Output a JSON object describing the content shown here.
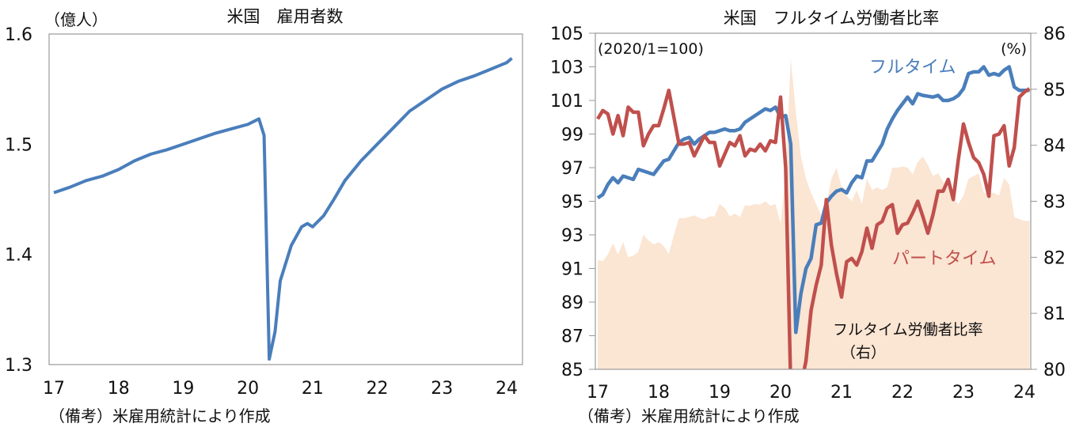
{
  "chart_data": [
    {
      "type": "line",
      "title": "米国　雇用者数",
      "ylabel": "（億人）",
      "note": "（備考）米雇用統計により作成",
      "ylim": [
        1.3,
        1.6
      ],
      "yticks": [
        "1.6",
        "1.5",
        "1.4",
        "1.3"
      ],
      "ytick_values": [
        1.6,
        1.5,
        1.4,
        1.3
      ],
      "xticks": [
        "17",
        "18",
        "19",
        "20",
        "21",
        "22",
        "23",
        "24"
      ],
      "xlim": [
        17,
        24
      ],
      "color": "#4a7ebb",
      "series": [
        {
          "name": "雇用者数",
          "x": [
            17.0,
            17.25,
            17.5,
            17.75,
            18.0,
            18.25,
            18.5,
            18.75,
            19.0,
            19.25,
            19.5,
            19.75,
            20.0,
            20.17,
            20.25,
            20.33,
            20.42,
            20.5,
            20.67,
            20.83,
            20.92,
            21.0,
            21.17,
            21.33,
            21.5,
            21.75,
            22.0,
            22.25,
            22.5,
            22.75,
            23.0,
            23.25,
            23.5,
            23.75,
            24.0,
            24.08
          ],
          "y": [
            1.456,
            1.461,
            1.467,
            1.471,
            1.477,
            1.485,
            1.491,
            1.495,
            1.5,
            1.505,
            1.51,
            1.514,
            1.518,
            1.523,
            1.508,
            1.305,
            1.33,
            1.376,
            1.408,
            1.425,
            1.428,
            1.425,
            1.435,
            1.45,
            1.467,
            1.485,
            1.5,
            1.515,
            1.53,
            1.54,
            1.55,
            1.557,
            1.562,
            1.568,
            1.574,
            1.578
          ]
        }
      ]
    },
    {
      "type": "line",
      "title": "米国　フルタイム労働者比率",
      "left_unit": "(2020/1=100)",
      "right_unit": "(%)",
      "note": "（備考）米雇用統計により作成",
      "start_month": "2017-01",
      "ylim_left": [
        85,
        105
      ],
      "ylim_right": [
        80,
        86
      ],
      "yticks_left": [
        "105",
        "103",
        "101",
        "99",
        "97",
        "95",
        "93",
        "91",
        "89",
        "87",
        "85"
      ],
      "yticks_right": [
        "86",
        "85",
        "84",
        "83",
        "82",
        "81",
        "80"
      ],
      "xticks": [
        "17",
        "18",
        "19",
        "20",
        "21",
        "22",
        "23",
        "24"
      ],
      "series": [
        {
          "name": "フルタイム",
          "axis": "left",
          "color": "#4a7ebb",
          "values": [
            95.2,
            95.4,
            96.0,
            96.4,
            96.1,
            96.5,
            96.4,
            96.3,
            96.9,
            96.8,
            96.7,
            96.6,
            97.0,
            97.4,
            97.5,
            98.0,
            98.5,
            98.7,
            98.8,
            98.4,
            98.7,
            98.9,
            99.1,
            99.1,
            99.2,
            99.3,
            99.2,
            99.2,
            99.3,
            99.7,
            99.9,
            100.1,
            100.3,
            100.5,
            100.4,
            100.6,
            100.0,
            100.1,
            98.4,
            87.2,
            89.5,
            91.0,
            91.6,
            93.6,
            93.7,
            94.9,
            95.3,
            95.6,
            95.7,
            95.5,
            96.1,
            96.5,
            96.4,
            97.4,
            97.4,
            97.9,
            98.4,
            99.3,
            99.9,
            100.4,
            100.8,
            101.2,
            100.8,
            101.4,
            101.3,
            101.25,
            101.2,
            101.3,
            101.0,
            101.0,
            101.1,
            101.3,
            101.7,
            102.6,
            102.7,
            102.7,
            103.0,
            102.5,
            102.6,
            102.5,
            102.8,
            103.0,
            101.8,
            101.6,
            101.6,
            101.6
          ]
        },
        {
          "name": "パートタイム",
          "axis": "left",
          "color": "#c0504d",
          "values": [
            99.9,
            100.4,
            100.2,
            99.0,
            100.1,
            98.9,
            100.6,
            100.3,
            100.3,
            98.3,
            99.0,
            99.5,
            99.5,
            100.5,
            101.6,
            100.0,
            98.4,
            98.4,
            98.5,
            97.7,
            98.3,
            98.9,
            98.5,
            98.5,
            97.1,
            97.8,
            98.5,
            98.3,
            98.9,
            97.7,
            98.1,
            98.0,
            98.4,
            98.0,
            98.6,
            98.5,
            101.2,
            97.0,
            84.0,
            80.0,
            80.0,
            85.5,
            88.5,
            90.0,
            91.2,
            95.1,
            92.4,
            90.7,
            89.3,
            91.4,
            91.6,
            91.2,
            92.0,
            93.4,
            92.2,
            93.6,
            93.8,
            94.6,
            94.8,
            93.1,
            93.6,
            93.7,
            94.3,
            95.0,
            94.1,
            93.1,
            94.2,
            95.6,
            95.6,
            96.3,
            95.1,
            97.5,
            99.6,
            98.5,
            97.6,
            97.3,
            96.6,
            95.3,
            98.9,
            99.0,
            99.5,
            97.1,
            98.2,
            101.2,
            101.5,
            101.7
          ]
        },
        {
          "name": "フルタイム労働者比率",
          "label_suffix": "（右）",
          "axis": "right",
          "type": "area",
          "color": "#fbe5d3",
          "values": [
            81.95,
            81.93,
            82.05,
            82.25,
            82.05,
            82.27,
            82.0,
            82.03,
            82.1,
            82.4,
            82.3,
            82.23,
            82.27,
            82.2,
            82.06,
            82.4,
            82.7,
            82.7,
            82.72,
            82.75,
            82.7,
            82.68,
            82.73,
            82.73,
            82.95,
            82.88,
            82.73,
            82.78,
            82.72,
            82.93,
            82.92,
            82.95,
            82.94,
            83.0,
            82.92,
            82.95,
            82.6,
            83.5,
            85.55,
            84.6,
            83.8,
            83.4,
            83.15,
            82.95,
            82.75,
            82.95,
            83.4,
            83.6,
            83.25,
            83.1,
            83.0,
            83.2,
            82.95,
            83.4,
            83.2,
            83.25,
            83.2,
            83.25,
            83.6,
            83.6,
            83.62,
            83.6,
            83.48,
            83.7,
            83.8,
            83.65,
            83.45,
            83.5,
            83.35,
            83.25,
            83.05,
            82.95,
            83.1,
            83.4,
            83.45,
            83.5,
            83.15,
            83.15,
            83.15,
            83.1,
            83.42,
            83.3,
            82.72,
            82.68,
            82.65,
            82.65
          ]
        }
      ]
    }
  ]
}
